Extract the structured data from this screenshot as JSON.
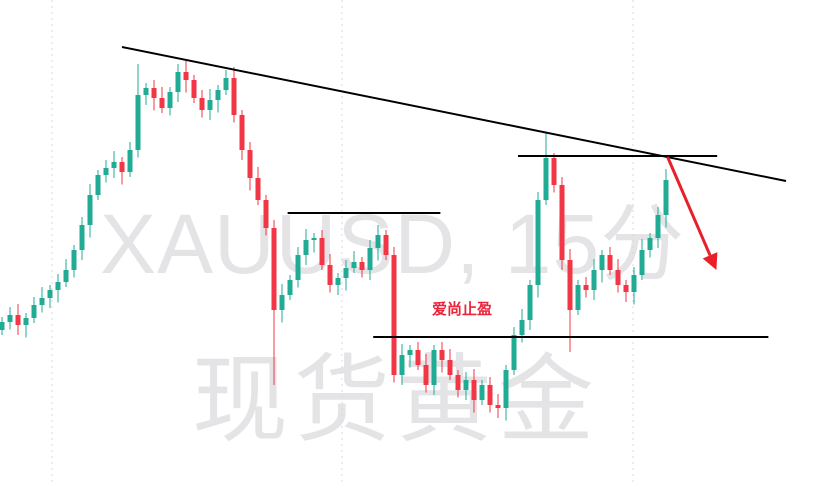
{
  "watermark": {
    "symbol_line": "XAUUSD, 15分",
    "name_line": "现货黄金"
  },
  "colors": {
    "up": "#22ab94",
    "down": "#f23645",
    "line": "#000000",
    "arrow": "#e8202a",
    "note": "#e8253a",
    "grid": "#d8d8dc"
  },
  "chart_data": {
    "type": "candlestick",
    "title": "",
    "grid": {
      "vertical_dotted": true,
      "horizontal": false
    },
    "first_open": 2617.0,
    "close": [
      2617.8,
      2618.5,
      2617.5,
      2618.2,
      2619.5,
      2620.2,
      2621.0,
      2621.8,
      2623.0,
      2625.0,
      2627.5,
      2630.5,
      2632.5,
      2633.2,
      2633.8,
      2632.8,
      2635.0,
      2640.5,
      2641.2,
      2640.2,
      2639.2,
      2640.8,
      2642.8,
      2642.0,
      2640.2,
      2639.0,
      2640.0,
      2641.0,
      2642.2,
      2638.5,
      2635.0,
      2632.2,
      2630.0,
      2627.2,
      2619.0,
      2620.5,
      2622.0,
      2624.5,
      2626.0,
      2626.2,
      2623.5,
      2621.5,
      2622.2,
      2623.2,
      2623.8,
      2623.0,
      2625.2,
      2626.5,
      2624.5,
      2612.5,
      2614.5,
      2615.0,
      2613.5,
      2611.5,
      2615.0,
      2614.0,
      2612.5,
      2611.0,
      2612.0,
      2610.0,
      2611.5,
      2609.5,
      2609.2,
      2613.0,
      2616.5,
      2618.0,
      2621.5,
      2630.0,
      2634.2,
      2631.5,
      2624.0,
      2619.0,
      2621.5,
      2621.0,
      2623.0,
      2624.5,
      2623.0,
      2621.5,
      2620.8,
      2622.5,
      2625.0,
      2626.2,
      2628.5,
      2632.0
    ],
    "spikes": [
      {
        "index": 17,
        "high": 2643.6
      },
      {
        "index": 34,
        "low": 2611.5
      },
      {
        "index": 47,
        "high": 2627.5
      },
      {
        "index": 68,
        "high": 2636.7
      },
      {
        "index": 71,
        "low": 2614.8
      }
    ],
    "annotations": {
      "trendline": {
        "from": {
          "index": 15,
          "price": 2645.3
        },
        "to": {
          "index": 98,
          "price": 2631.9
        }
      },
      "horizontal_lines": [
        {
          "from_index": 35.7,
          "to_index": 54.8,
          "price": 2628.7
        },
        {
          "from_index": 64.5,
          "to_index": 89.4,
          "price": 2634.4
        },
        {
          "from_index": 46.4,
          "to_index": 95.8,
          "price": 2616.3
        }
      ],
      "arrow": {
        "from": {
          "index": 83.2,
          "price": 2634.3
        },
        "to": {
          "index": 89.3,
          "price": 2623.0
        }
      },
      "note": {
        "text": "爱尚止盈"
      }
    }
  }
}
